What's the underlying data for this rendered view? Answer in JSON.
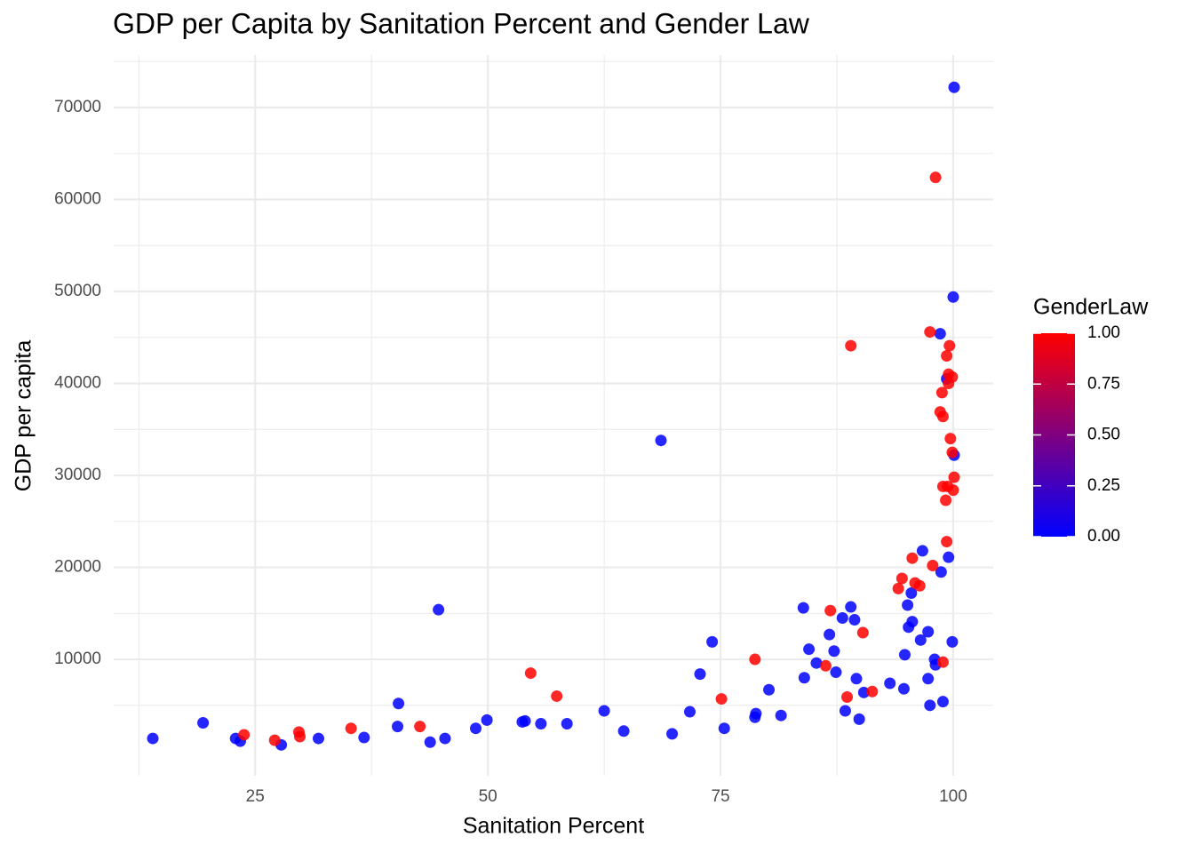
{
  "chart_data": {
    "type": "scatter",
    "title": "GDP per Capita by Sanitation Percent and Gender Law",
    "x_label": "Sanitation Percent",
    "y_label": "GDP per capita",
    "color_label": "GenderLaw",
    "color_low": "#0000ff",
    "color_high": "#ff0000",
    "xlim": [
      9.8,
      104.3
    ],
    "ylim": [
      -2650,
      75700
    ],
    "xticks": [
      25,
      50,
      75,
      100
    ],
    "yticks": [
      10000,
      20000,
      30000,
      40000,
      50000,
      60000,
      70000
    ],
    "color_lim": [
      0,
      1
    ],
    "color_ticks": [
      {
        "value": 0,
        "label": "0.00"
      },
      {
        "value": 0.25,
        "label": "0.25"
      },
      {
        "value": 0.5,
        "label": "0.50"
      },
      {
        "value": 0.75,
        "label": "0.75"
      },
      {
        "value": 1,
        "label": "1.00"
      }
    ],
    "grid": true,
    "x": [
      14.0,
      19.4,
      22.9,
      23.4,
      27.8,
      31.8,
      36.7,
      40.4,
      40.3,
      43.8,
      44.7,
      45.4,
      48.7,
      49.9,
      53.7,
      54.0,
      55.7,
      58.5,
      62.5,
      64.6,
      68.6,
      69.8,
      71.7,
      72.8,
      74.1,
      75.4,
      78.7,
      78.8,
      80.2,
      81.5,
      83.9,
      84.0,
      84.5,
      85.3,
      86.7,
      87.2,
      87.4,
      88.1,
      88.4,
      89.0,
      89.4,
      89.6,
      89.9,
      90.4,
      93.2,
      94.7,
      94.8,
      95.1,
      95.2,
      95.5,
      95.6,
      96.5,
      96.7,
      97.3,
      97.3,
      97.5,
      98.0,
      98.1,
      98.6,
      98.7,
      98.9,
      99.3,
      99.5,
      99.9,
      100.0,
      100.1,
      100.1,
      23.8,
      27.1,
      29.7,
      29.8,
      35.3,
      42.7,
      54.6,
      57.4,
      75.1,
      78.7,
      86.3,
      86.8,
      88.6,
      89.0,
      90.3,
      91.3,
      94.1,
      94.5,
      95.6,
      95.9,
      96.4,
      97.5,
      97.8,
      98.1,
      98.6,
      98.8,
      98.9,
      98.9,
      98.9,
      99.2,
      99.3,
      99.3,
      99.4,
      99.5,
      99.5,
      99.6,
      99.7,
      99.9,
      99.9,
      100.1,
      100.0
    ],
    "y": [
      1400,
      3100,
      1400,
      1100,
      700,
      1400,
      1500,
      5200,
      2700,
      1000,
      15400,
      1400,
      2500,
      3400,
      3200,
      3300,
      3000,
      3000,
      4400,
      2200,
      33800,
      1900,
      4300,
      8400,
      11900,
      2500,
      3700,
      4100,
      6700,
      3900,
      15600,
      8000,
      11100,
      9600,
      12700,
      10900,
      8600,
      14500,
      4400,
      15700,
      14300,
      7900,
      3500,
      6400,
      7400,
      6800,
      10500,
      15900,
      13500,
      17200,
      14100,
      12100,
      21800,
      13000,
      7900,
      5000,
      10000,
      9400,
      45400,
      19500,
      5400,
      40500,
      21100,
      11900,
      49400,
      32200,
      72200,
      1800,
      1200,
      2100,
      1600,
      2500,
      2700,
      8500,
      6000,
      5700,
      10000,
      9300,
      15300,
      5900,
      44100,
      12900,
      6500,
      17700,
      18800,
      21000,
      18300,
      18000,
      45600,
      20200,
      62400,
      36900,
      39000,
      36400,
      28800,
      9700,
      27300,
      43000,
      22800,
      28800,
      41000,
      40000,
      44100,
      34000,
      40700,
      32500,
      29800,
      28400
    ],
    "color_values": [
      0,
      0,
      0,
      0,
      0,
      0,
      0,
      0,
      0,
      0,
      0,
      0,
      0,
      0,
      0,
      0,
      0,
      0,
      0,
      0,
      0,
      0,
      0,
      0,
      0,
      0,
      0,
      0,
      0,
      0,
      0,
      0,
      0,
      0,
      0,
      0,
      0,
      0,
      0,
      0,
      0,
      0,
      0,
      0,
      0,
      0,
      0,
      0,
      0,
      0,
      0,
      0,
      0,
      0,
      0,
      0,
      0,
      0,
      0,
      0,
      0,
      0,
      0,
      0,
      0,
      0,
      0,
      1,
      1,
      1,
      1,
      1,
      1,
      1,
      1,
      1,
      1,
      1,
      1,
      1,
      1,
      1,
      1,
      1,
      1,
      1,
      1,
      1,
      1,
      1,
      1,
      1,
      1,
      1,
      1,
      1,
      1,
      1,
      1,
      1,
      1,
      1,
      1,
      1,
      1,
      1,
      1,
      1
    ]
  }
}
